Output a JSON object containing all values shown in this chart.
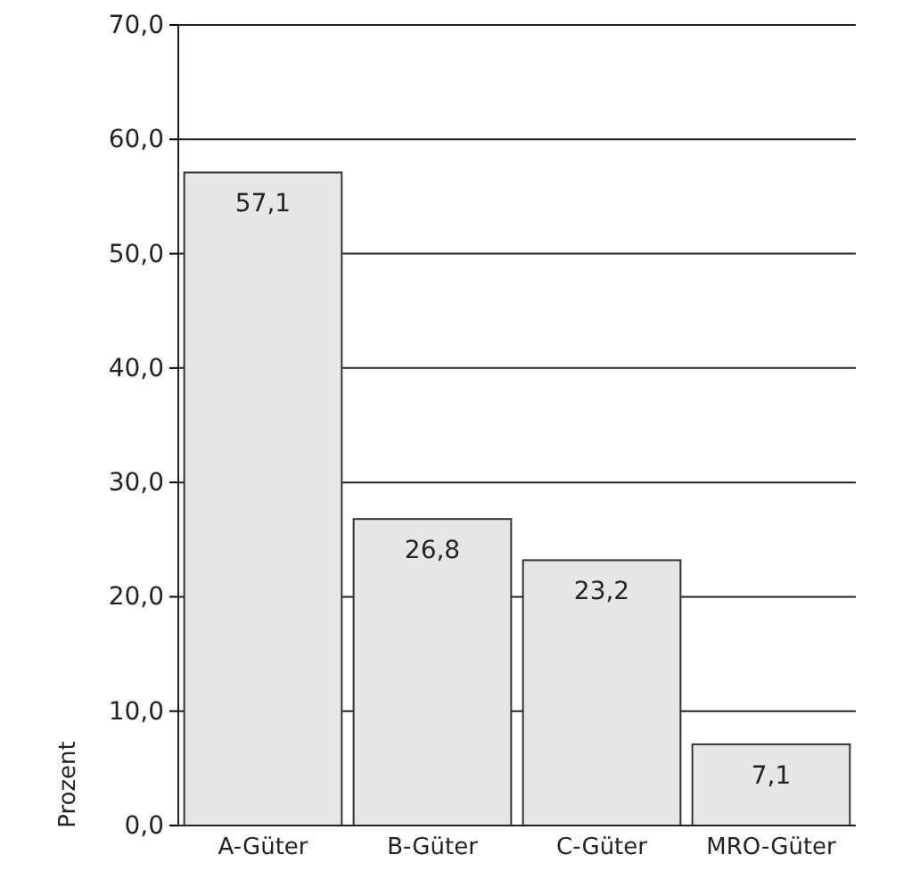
{
  "chart_data": {
    "type": "bar",
    "ylabel": "Prozent",
    "categories": [
      "A-Güter",
      "B-Güter",
      "C-Güter",
      "MRO-Güter"
    ],
    "values": [
      57.1,
      26.8,
      23.2,
      7.1
    ],
    "value_labels": [
      "57,1",
      "26,8",
      "23,2",
      "7,1"
    ],
    "color": "#e6e6e6",
    "ylim": [
      0,
      70
    ],
    "yticks": [
      {
        "value": 0,
        "label": "0,0"
      },
      {
        "value": 10,
        "label": "10,0"
      },
      {
        "value": 20,
        "label": "20,0"
      },
      {
        "value": 30,
        "label": "30,0"
      },
      {
        "value": 40,
        "label": "40,0"
      },
      {
        "value": 50,
        "label": "50,0"
      },
      {
        "value": 60,
        "label": "60,0"
      },
      {
        "value": 70,
        "label": "70,0"
      }
    ],
    "grid": "y"
  }
}
